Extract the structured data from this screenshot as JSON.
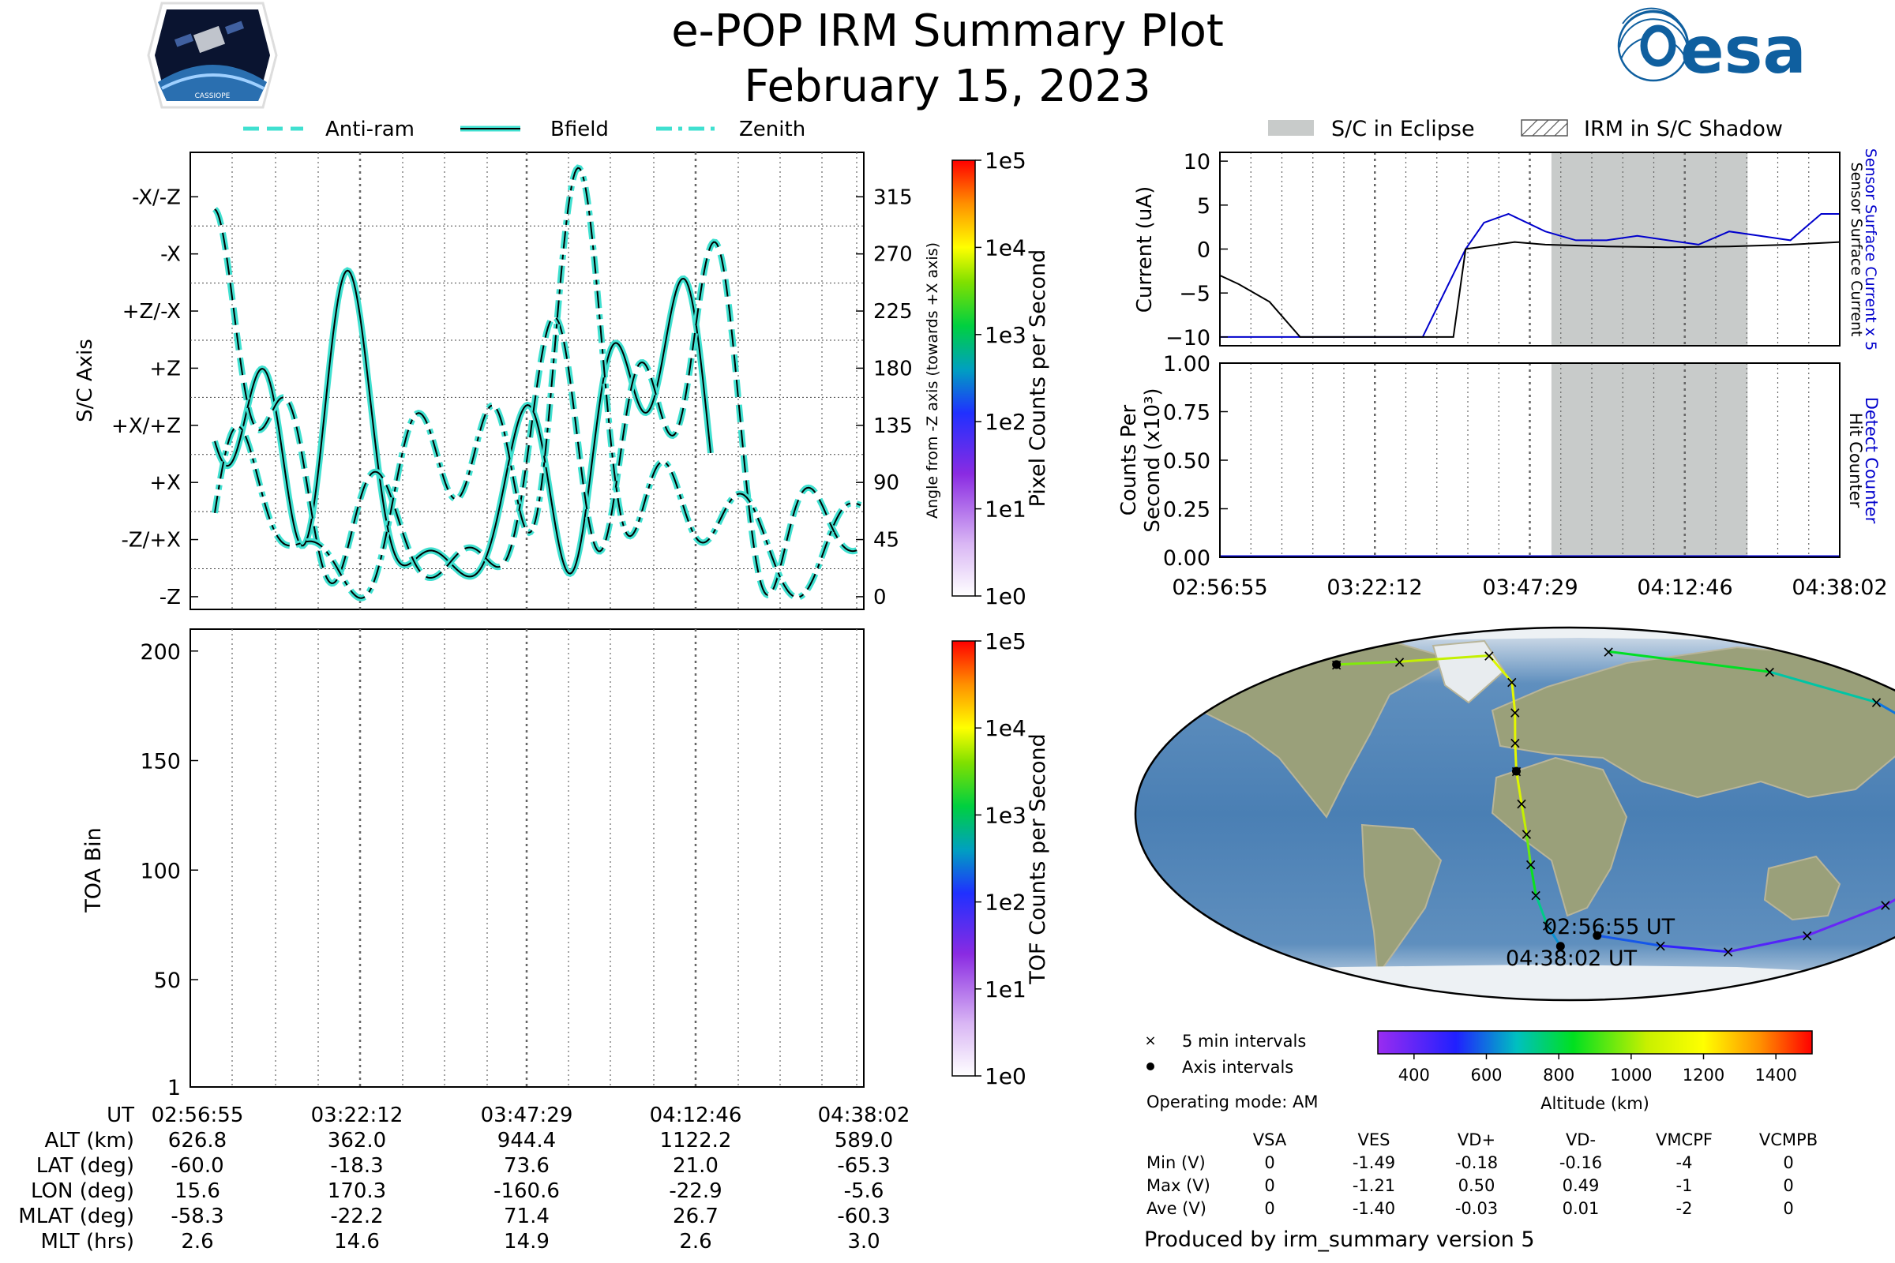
{
  "header": {
    "title": "e-POP IRM Summary Plot",
    "date": "February 15, 2023",
    "mission_logo_text": "CASSIOPE",
    "esa_logo_text": "esa",
    "colors": {
      "accent_teal": "#40e0d0",
      "trace_blue": "#0000cc",
      "eclipse_grey": "#c8cbca"
    }
  },
  "chart_data": [
    {
      "id": "attitude",
      "type": "line",
      "legend": [
        "Anti-ram",
        "Bfield",
        "Zenith"
      ],
      "legend_placement": "top",
      "ylabel": "S/C Axis",
      "y_ticks_left": [
        "-X/-Z",
        "-X",
        "+Z/-X",
        "+Z",
        "+X/+Z",
        "+X",
        "-Z/+X",
        "-Z"
      ],
      "y2label": "Angle from -Z axis (towards +X axis)",
      "y2_ticks": [
        "315",
        "270",
        "225",
        "180",
        "135",
        "90",
        "45",
        "0"
      ],
      "ylim": [
        -10,
        350
      ],
      "colorbar": {
        "label": "Pixel Counts per Second",
        "ticks": [
          "1e0",
          "1e1",
          "1e2",
          "1e3",
          "1e4",
          "1e5"
        ]
      },
      "grid": true
    },
    {
      "id": "toa",
      "type": "heatmap",
      "ylabel": "TOA Bin",
      "y_ticks": [
        "1",
        "50",
        "100",
        "150",
        "200"
      ],
      "ylim": [
        1,
        210
      ],
      "x_ticks": [
        "02:56:55",
        "03:22:12",
        "03:47:29",
        "04:12:46",
        "04:38:02"
      ],
      "colorbar": {
        "label": "TOF Counts per Second",
        "ticks": [
          "1e0",
          "1e1",
          "1e2",
          "1e3",
          "1e4",
          "1e5"
        ]
      },
      "grid": true
    },
    {
      "id": "current",
      "type": "line",
      "legend": [
        "S/C in Eclipse",
        "IRM in S/C Shadow"
      ],
      "legend_placement": "top",
      "ylabel": "Current (uA)",
      "y_ticks": [
        "10",
        "5",
        "0",
        "−5",
        "−10"
      ],
      "ylim": [
        -11,
        11
      ],
      "right_labels": [
        "Sensor Surface Current x 5",
        "Sensor Surface Current"
      ],
      "eclipse_span": [
        "03:51:00",
        "04:23:00"
      ],
      "series": [
        {
          "name": "Sensor Surface Current x 5",
          "color": "#0000cc",
          "x": [
            "02:56:55",
            "03:30:00",
            "03:37:00",
            "03:40:00",
            "03:44:00",
            "03:50:00",
            "03:55:00",
            "04:00:00",
            "04:05:00",
            "04:10:00",
            "04:15:00",
            "04:20:00",
            "04:25:00",
            "04:30:00",
            "04:35:00",
            "04:38:02"
          ],
          "values": [
            -10,
            -10,
            0,
            3,
            4,
            2,
            1,
            1,
            1.5,
            1,
            0.5,
            2,
            1.5,
            1,
            4,
            4
          ]
        },
        {
          "name": "Sensor Surface Current",
          "color": "#000000",
          "x": [
            "02:56:55",
            "03:00:00",
            "03:05:00",
            "03:10:00",
            "03:15:00",
            "03:20:00",
            "03:30:00",
            "03:35:00",
            "03:37:00",
            "03:45:00",
            "03:50:00",
            "04:00:00",
            "04:10:00",
            "04:20:00",
            "04:30:00",
            "04:38:02"
          ],
          "values": [
            -3,
            -4,
            -6,
            -10,
            -10,
            -10,
            -10,
            -10,
            0,
            0.8,
            0.5,
            0.3,
            0.2,
            0.3,
            0.5,
            0.8
          ]
        }
      ],
      "grid": true
    },
    {
      "id": "counts",
      "type": "line",
      "ylabel": "Counts Per Second (x10³)",
      "y_ticks": [
        "1.00",
        "0.75",
        "0.50",
        "0.25",
        "0.00"
      ],
      "ylim": [
        0,
        1
      ],
      "x_ticks": [
        "02:56:55",
        "03:22:12",
        "03:47:29",
        "04:12:46",
        "04:38:02"
      ],
      "right_labels": [
        "Detect Counter",
        "Hit Counter"
      ],
      "series": [
        {
          "name": "Detect Counter",
          "color": "#0000cc",
          "x": [
            "02:56:55",
            "04:38:02"
          ],
          "values": [
            0,
            0
          ]
        },
        {
          "name": "Hit Counter",
          "color": "#000000",
          "x": [
            "02:56:55",
            "04:38:02"
          ],
          "values": [
            0,
            0
          ]
        }
      ],
      "grid": true
    },
    {
      "id": "orbit_map",
      "type": "scatter",
      "start_label": "02:56:55 UT",
      "end_label": "04:38:02 UT",
      "legend": [
        "5 min intervals",
        "Axis intervals"
      ],
      "colorbar": {
        "label": "Altitude (km)",
        "ticks": [
          "400",
          "600",
          "800",
          "1000",
          "1200",
          "1400"
        ],
        "range": [
          300,
          1500
        ]
      },
      "track": [
        {
          "lon": 15.6,
          "lat": -60.0,
          "alt": 627
        },
        {
          "lon": 55,
          "lat": -65,
          "alt": 520
        },
        {
          "lon": 100,
          "lat": -68,
          "alt": 450
        },
        {
          "lon": 135,
          "lat": -60,
          "alt": 400
        },
        {
          "lon": 155,
          "lat": -45,
          "alt": 380
        },
        {
          "lon": 165,
          "lat": -30,
          "alt": 370
        },
        {
          "lon": 170.3,
          "lat": -18.3,
          "alt": 362
        },
        {
          "lon": 172,
          "lat": -5,
          "alt": 380
        },
        {
          "lon": 173,
          "lat": 10,
          "alt": 420
        },
        {
          "lon": 172,
          "lat": 25,
          "alt": 480
        },
        {
          "lon": 170,
          "lat": 40,
          "alt": 560
        },
        {
          "lon": 165,
          "lat": 55,
          "alt": 650
        },
        {
          "lon": 130,
          "lat": 70,
          "alt": 770
        },
        {
          "lon": 30,
          "lat": 80,
          "alt": 900
        },
        {
          "lon": -160.6,
          "lat": 73.6,
          "alt": 944
        },
        {
          "lon": -120,
          "lat": 75,
          "alt": 1000
        },
        {
          "lon": -60,
          "lat": 78,
          "alt": 1080
        },
        {
          "lon": -35,
          "lat": 65,
          "alt": 1120
        },
        {
          "lon": -28,
          "lat": 50,
          "alt": 1125
        },
        {
          "lon": -25,
          "lat": 35,
          "alt": 1124
        },
        {
          "lon": -22.9,
          "lat": 21.0,
          "alt": 1122
        },
        {
          "lon": -20,
          "lat": 5,
          "alt": 1080
        },
        {
          "lon": -18,
          "lat": -10,
          "alt": 1000
        },
        {
          "lon": -17,
          "lat": -25,
          "alt": 900
        },
        {
          "lon": -16,
          "lat": -40,
          "alt": 800
        },
        {
          "lon": -12,
          "lat": -55,
          "alt": 680
        },
        {
          "lon": -5.6,
          "lat": -65.3,
          "alt": 589
        }
      ],
      "axis_points": [
        {
          "lon": 15.6,
          "lat": -60.0
        },
        {
          "lon": 170.3,
          "lat": -18.3
        },
        {
          "lon": -160.6,
          "lat": 73.6
        },
        {
          "lon": -22.9,
          "lat": 21.0
        },
        {
          "lon": -5.6,
          "lat": -65.3
        }
      ]
    }
  ],
  "ut_table": {
    "row_labels": [
      "UT",
      "ALT (km)",
      "LAT (deg)",
      "LON (deg)",
      "MLAT (deg)",
      "MLT (hrs)"
    ],
    "columns": [
      [
        "02:56:55",
        "626.8",
        "-60.0",
        "15.6",
        "-58.3",
        "2.6"
      ],
      [
        "03:22:12",
        "362.0",
        "-18.3",
        "170.3",
        "-22.2",
        "14.6"
      ],
      [
        "03:47:29",
        "944.4",
        "73.6",
        "-160.6",
        "71.4",
        "14.9"
      ],
      [
        "04:12:46",
        "1122.2",
        "21.0",
        "-22.9",
        "26.7",
        "2.6"
      ],
      [
        "04:38:02",
        "589.0",
        "-65.3",
        "-5.6",
        "-60.3",
        "3.0"
      ]
    ]
  },
  "operating_mode": "Operating mode: AM",
  "voltage_table": {
    "headers": [
      "",
      "VSA",
      "VES",
      "VD+",
      "VD-",
      "VMCPF",
      "VCMPB"
    ],
    "rows": [
      [
        "Min (V)",
        "0",
        "-1.49",
        "-0.18",
        "-0.16",
        "-4",
        "0"
      ],
      [
        "Max (V)",
        "0",
        "-1.21",
        "0.50",
        "0.49",
        "-1",
        "0"
      ],
      [
        "Ave (V)",
        "0",
        "-1.40",
        "-0.03",
        "0.01",
        "-2",
        "0"
      ]
    ]
  },
  "footer": "Produced by irm_summary version 5"
}
